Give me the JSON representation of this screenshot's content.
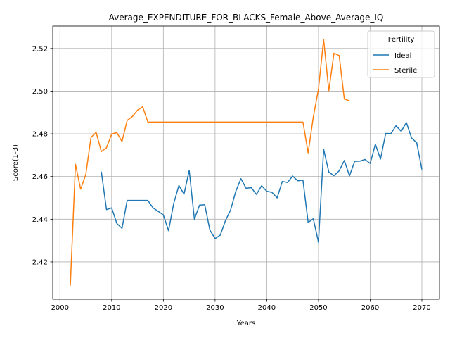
{
  "chart_data": {
    "type": "line",
    "title": "Average_EXPENDITURE_FOR_BLACKS_Female_Above_Average_IQ",
    "xlabel": "Years",
    "ylabel": "Score(1-3)",
    "xlim": [
      1998.6,
      2073.4
    ],
    "ylim": [
      2.4025,
      2.5305
    ],
    "xticks": [
      2000,
      2010,
      2020,
      2030,
      2040,
      2050,
      2060,
      2070
    ],
    "yticks": [
      2.42,
      2.44,
      2.46,
      2.48,
      2.5,
      2.52
    ],
    "ytick_labels": [
      "2.42",
      "2.44",
      "2.46",
      "2.48",
      "2.50",
      "2.52"
    ],
    "grid": true,
    "legend": {
      "title": "Fertility",
      "position": "top-right"
    },
    "series": [
      {
        "name": "Ideal",
        "color": "#1f77b4",
        "x": [
          2008,
          2009,
          2010,
          2011,
          2012,
          2013,
          2014,
          2015,
          2016,
          2017,
          2018,
          2019,
          2020,
          2021,
          2022,
          2023,
          2024,
          2025,
          2026,
          2027,
          2028,
          2029,
          2030,
          2031,
          2032,
          2033,
          2034,
          2035,
          2036,
          2037,
          2038,
          2039,
          2040,
          2041,
          2042,
          2043,
          2044,
          2045,
          2046,
          2047,
          2048,
          2049,
          2050,
          2051,
          2052,
          2053,
          2054,
          2055,
          2056,
          2057,
          2058,
          2059,
          2060,
          2061,
          2062,
          2063,
          2064,
          2065,
          2066,
          2067,
          2068,
          2069,
          2070
        ],
        "y": [
          2.4623,
          2.4445,
          2.4453,
          2.438,
          2.4357,
          2.4488,
          2.4488,
          2.4488,
          2.4488,
          2.4488,
          2.4453,
          2.4437,
          2.442,
          2.4346,
          2.4474,
          2.4558,
          2.4518,
          2.4629,
          2.44,
          2.4466,
          2.4468,
          2.4349,
          2.4309,
          2.4325,
          2.4393,
          2.4443,
          2.453,
          2.459,
          2.4545,
          2.4548,
          2.4516,
          2.4557,
          2.4531,
          2.4526,
          2.45,
          2.4577,
          2.4572,
          2.4602,
          2.458,
          2.4583,
          2.4385,
          2.4402,
          2.4292,
          2.4728,
          2.4621,
          2.4604,
          2.4627,
          2.4675,
          2.4603,
          2.4671,
          2.4672,
          2.468,
          2.4661,
          2.4751,
          2.4682,
          2.4802,
          2.4801,
          2.4838,
          2.4812,
          2.4853,
          2.4781,
          2.4758,
          2.4633
        ]
      },
      {
        "name": "Sterile",
        "color": "#ff7f0e",
        "x": [
          2002,
          2003,
          2004,
          2005,
          2006,
          2007,
          2008,
          2009,
          2010,
          2011,
          2012,
          2013,
          2014,
          2015,
          2016,
          2017,
          2018,
          2019,
          2020,
          2021,
          2022,
          2023,
          2024,
          2025,
          2026,
          2027,
          2028,
          2029,
          2030,
          2031,
          2032,
          2033,
          2034,
          2035,
          2036,
          2037,
          2038,
          2039,
          2040,
          2041,
          2042,
          2043,
          2044,
          2045,
          2046,
          2047,
          2048,
          2049,
          2050,
          2051,
          2052,
          2053,
          2054,
          2055,
          2056
        ],
        "y": [
          2.4088,
          2.4657,
          2.4541,
          2.461,
          2.4783,
          2.4807,
          2.4717,
          2.4735,
          2.4799,
          2.4806,
          2.4764,
          2.4863,
          2.4881,
          2.4911,
          2.4927,
          2.4855,
          2.4855,
          2.4855,
          2.4855,
          2.4855,
          2.4855,
          2.4855,
          2.4855,
          2.4855,
          2.4855,
          2.4855,
          2.4855,
          2.4855,
          2.4855,
          2.4855,
          2.4855,
          2.4855,
          2.4855,
          2.4855,
          2.4855,
          2.4855,
          2.4855,
          2.4855,
          2.4855,
          2.4855,
          2.4855,
          2.4855,
          2.4855,
          2.4855,
          2.4855,
          2.4855,
          2.4711,
          2.4879,
          2.501,
          2.5242,
          2.5002,
          2.5178,
          2.5167,
          2.4963,
          2.4955
        ]
      }
    ]
  }
}
